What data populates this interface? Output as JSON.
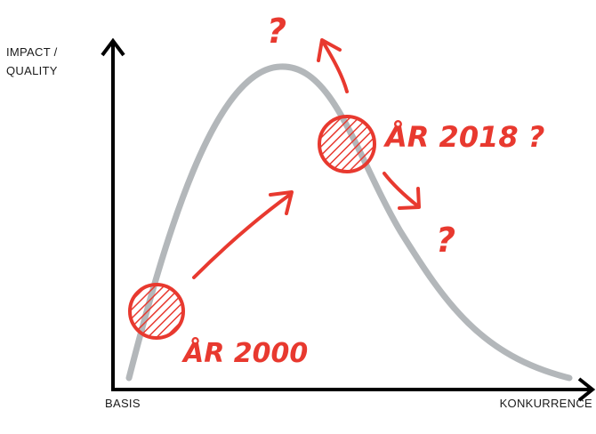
{
  "y_axis_label_line1": "IMPACT /",
  "y_axis_label_line2": "QUALITY",
  "x_axis_left_label": "BASIS",
  "x_axis_right_label": "KONKURRENCE",
  "annotation_2000": "ÅR 2000",
  "annotation_2018": "ÅR 2018 ?",
  "question_marks": [
    "?",
    "?"
  ],
  "colors": {
    "curve": "#b3b7ba",
    "annotation": "#e8392f",
    "axis": "#000000"
  }
}
